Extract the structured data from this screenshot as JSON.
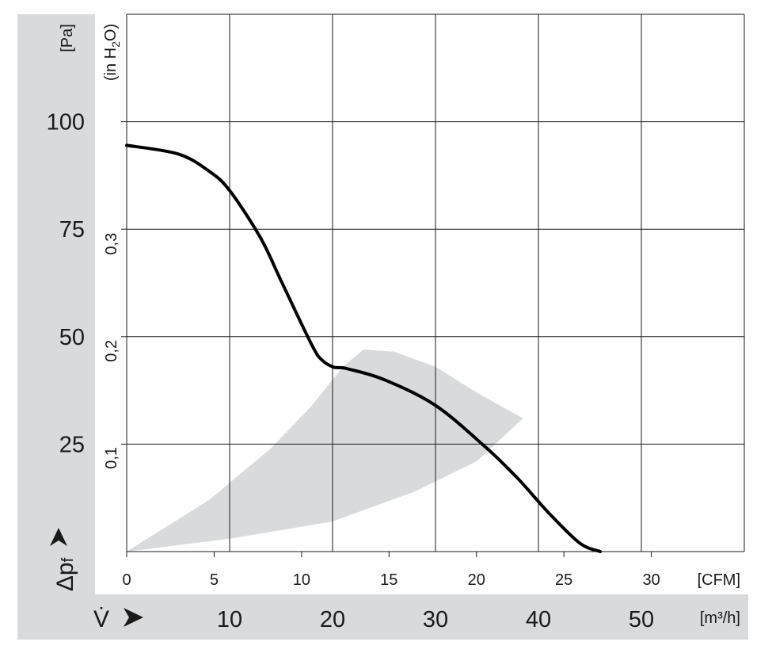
{
  "colors": {
    "panel": "#d9dadc",
    "grid": "#1a1a1a",
    "curve": "#000000",
    "operating_zone": "#d9dadc"
  },
  "chart_data": {
    "type": "line",
    "title": "",
    "y_symbol": "Δp",
    "y_symbol_sub": "f",
    "x_symbol": "V̇",
    "grid": true,
    "axes": {
      "x_primary": {
        "unit": "[m³/h]",
        "range": [
          0,
          60
        ],
        "ticks": [
          10,
          20,
          30,
          40,
          50
        ]
      },
      "x_secondary": {
        "unit": "[CFM]",
        "range": [
          0,
          35.3
        ],
        "ticks": [
          0,
          5,
          10,
          15,
          20,
          25,
          30
        ]
      },
      "y_primary": {
        "unit": "[Pa]",
        "range": [
          0,
          125
        ],
        "ticks": [
          25,
          50,
          75,
          100
        ]
      },
      "y_secondary": {
        "unit_prefix": "(in H",
        "unit_sub": "2",
        "unit_suffix": "O)",
        "ticks": [
          "0,1",
          "0,2",
          "0,3"
        ],
        "tick_values": [
          0.1,
          0.2,
          0.3
        ]
      }
    },
    "series": [
      {
        "x_m3h": [
          0,
          5,
          8,
          10,
          13,
          15,
          18,
          19,
          20,
          20.5,
          21.5,
          25,
          30,
          35,
          38,
          41,
          44,
          46
        ],
        "y_pa": [
          94.5,
          92.5,
          88.5,
          84,
          73,
          63,
          48,
          44.5,
          43,
          42.8,
          42.5,
          40,
          34,
          24,
          17,
          9,
          2,
          0
        ]
      }
    ],
    "operating_zone": {
      "upper_boundary": {
        "x_m3h": [
          0,
          8,
          14,
          18,
          21,
          23
        ],
        "y_pa": [
          0,
          12,
          24,
          34,
          43,
          47
        ]
      },
      "top_edge": {
        "x_m3h": [
          23,
          26,
          30,
          34,
          38.5
        ],
        "y_pa": [
          47,
          46.5,
          43,
          37,
          31
        ]
      },
      "lower_boundary": {
        "x_m3h": [
          0,
          10,
          20,
          28,
          34,
          38.5
        ],
        "y_pa": [
          0,
          3,
          7,
          14,
          21,
          31
        ]
      }
    }
  }
}
